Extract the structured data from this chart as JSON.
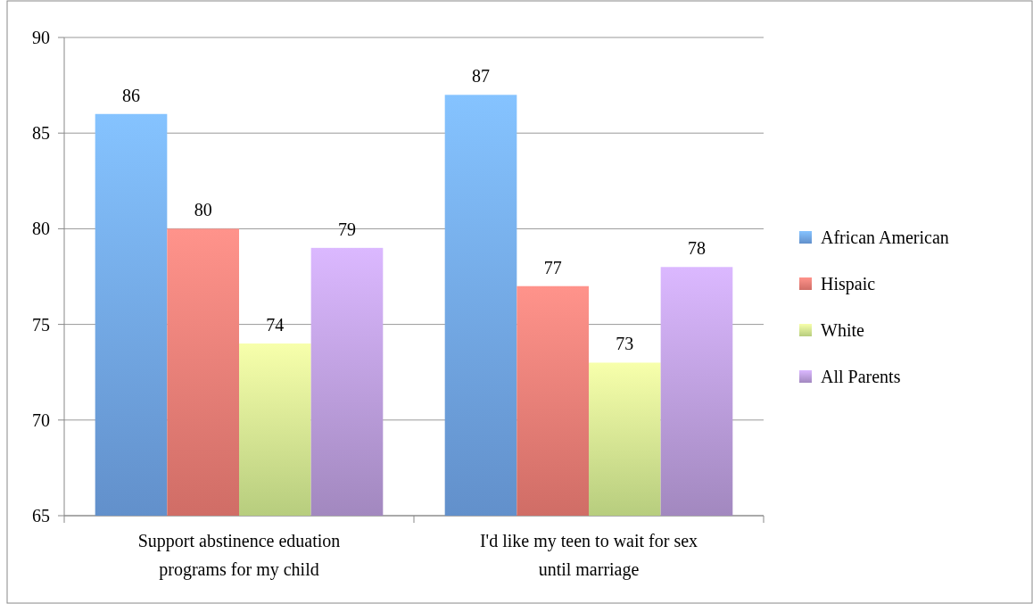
{
  "chart_data": {
    "type": "bar",
    "categories": [
      "Support abstinence eduation programs for my child",
      "I'd like my teen to wait for sex until marriage"
    ],
    "series": [
      {
        "name": "African American",
        "color": "#6fa3e6",
        "values": [
          86,
          87
        ]
      },
      {
        "name": "Hispaic",
        "color": "#ec7b74",
        "values": [
          80,
          77
        ]
      },
      {
        "name": "White",
        "color": "#cfe88f",
        "values": [
          74,
          73
        ]
      },
      {
        "name": "All Parents",
        "color": "#b79ad8",
        "values": [
          79,
          78
        ]
      }
    ],
    "ylim": [
      65,
      90
    ],
    "yticks": [
      65,
      70,
      75,
      80,
      85,
      90
    ],
    "grid": "y",
    "legend": "right",
    "data_labels": true
  }
}
